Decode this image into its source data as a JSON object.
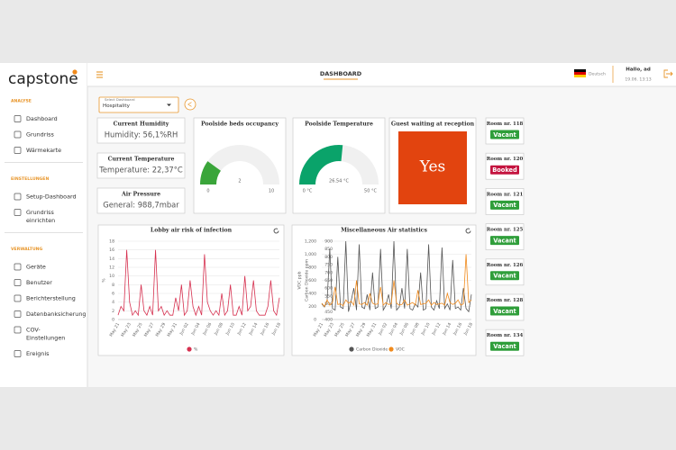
{
  "brand": "capstone",
  "sidebar": [
    {
      "heading": "ANALYSE",
      "items": [
        "Dashboard",
        "Grundriss",
        "Wärmekarte"
      ]
    },
    {
      "heading": "EINSTELLUNGEN",
      "items": [
        "Setup-Dashboard",
        "Grundriss einrichten"
      ]
    },
    {
      "heading": "VERWALTUNG",
      "items": [
        "Geräte",
        "Benutzer",
        "Berichterstellung",
        "Datenbanksicherung",
        "COV-Einstellungen",
        "Ereignis"
      ]
    }
  ],
  "header": {
    "title": "DASHBOARD",
    "language": "Deutsch",
    "greeting": "Hallo, ad",
    "datetime": "19.06. 13:13"
  },
  "selector": {
    "label": "Select Dashboard",
    "value": "Hospitality"
  },
  "info_cards": [
    {
      "title": "Current Humidity",
      "text": "Humidity: 56,1%RH"
    },
    {
      "title": "Current Temperature",
      "text": "Temperature: 22,37°C"
    },
    {
      "title": "Air Pressure",
      "text": "General: 988,7mbar"
    }
  ],
  "gauges": [
    {
      "type": "gauge",
      "title": "Poolside beds occupancy",
      "value": 2,
      "range": [
        0,
        10
      ],
      "color": "#3aa53a"
    },
    {
      "type": "gauge",
      "title": "Poolside Temperature",
      "value": 26.54,
      "value_label": "26.54 °C",
      "range": [
        0,
        50
      ],
      "range_labels": [
        "0 °C",
        "50 °C"
      ],
      "color": "#0aa36a"
    }
  ],
  "guest": {
    "title": "Guest waiting at reception",
    "status": "Yes",
    "color": "#e2440f"
  },
  "rooms": [
    {
      "name": "Room nr. 118",
      "status": "Vacant",
      "color": "#2f9e3a"
    },
    {
      "name": "Room nr. 120",
      "status": "Booked",
      "color": "#c4133f"
    },
    {
      "name": "Room nr. 121",
      "status": "Vacant",
      "color": "#2f9e3a"
    },
    {
      "name": "Room nr. 125",
      "status": "Vacant",
      "color": "#2f9e3a"
    },
    {
      "name": "Room nr. 126",
      "status": "Vacant",
      "color": "#2f9e3a"
    },
    {
      "name": "Room nr. 128",
      "status": "Vacant",
      "color": "#2f9e3a"
    },
    {
      "name": "Room nr. 134",
      "status": "Vacant",
      "color": "#2f9e3a"
    }
  ],
  "chart_data": [
    {
      "type": "line",
      "title": "Lobby air risk of infection",
      "y_label": "%",
      "ylim": [
        0,
        18
      ],
      "yticks": [
        0,
        2,
        4,
        6,
        8,
        10,
        12,
        14,
        16,
        18
      ],
      "grid": true,
      "categories": [
        "May 21",
        null,
        null,
        null,
        "May 23",
        null,
        null,
        null,
        "May 25",
        null,
        null,
        null,
        "May 27",
        null,
        null,
        null,
        "May 29",
        null,
        null,
        null,
        "May 31",
        null,
        null,
        null,
        "Jun 02",
        null,
        null,
        null,
        "Jun 04",
        null,
        null,
        null,
        "Jun 06",
        null,
        null,
        null,
        "Jun 08",
        null,
        null,
        null,
        "Jun 10",
        null,
        null,
        null,
        "Jun 12",
        null,
        null,
        null,
        "Jun 14",
        null,
        null,
        null,
        "Jun 16",
        null,
        null,
        null,
        "Jun 18"
      ],
      "series": [
        {
          "name": "%",
          "color": "#d6304f",
          "values": [
            1,
            3,
            2,
            16,
            4,
            1,
            2,
            1,
            8,
            2,
            1,
            3,
            1,
            16,
            2,
            3,
            1,
            2,
            1,
            1,
            5,
            2,
            8,
            1,
            2,
            9,
            3,
            1,
            3,
            1,
            15,
            4,
            2,
            1,
            2,
            1,
            6,
            1,
            2,
            8,
            1,
            1,
            3,
            1,
            10,
            2,
            3,
            9,
            2,
            1,
            1,
            1,
            3,
            9,
            2,
            1,
            5
          ]
        }
      ]
    },
    {
      "type": "line",
      "title": "Miscellaneous Air statistics",
      "y_label": "VOC ppb",
      "y2_label": "Carbon Dioxide ppm",
      "ylim": [
        0,
        1200
      ],
      "yticks": [
        0,
        200,
        400,
        600,
        800,
        {
          "value": 1000,
          "label": "1,000"
        },
        {
          "value": 1200,
          "label": "1,200"
        }
      ],
      "y2lim": [
        400,
        900
      ],
      "y2ticks": [
        400,
        450,
        500,
        550,
        600,
        650,
        700,
        750,
        800,
        850,
        900
      ],
      "grid": true,
      "categories": [
        "May 21",
        null,
        null,
        null,
        "May 23",
        null,
        null,
        null,
        "May 25",
        null,
        null,
        null,
        "May 27",
        null,
        null,
        null,
        "May 29",
        null,
        null,
        null,
        "May 31",
        null,
        null,
        null,
        "Jun 02",
        null,
        null,
        null,
        "Jun 04",
        null,
        null,
        null,
        "Jun 06",
        null,
        null,
        null,
        "Jun 08",
        null,
        null,
        null,
        "Jun 10",
        null,
        null,
        null,
        "Jun 12",
        null,
        null,
        null,
        "Jun 14",
        null,
        null,
        null,
        "Jun 16",
        null,
        null,
        null,
        "Jun 18"
      ],
      "series": [
        {
          "name": "Carbon Dioxide",
          "color": "#555555",
          "axis": "y2",
          "values": [
            500,
            480,
            520,
            850,
            470,
            460,
            800,
            480,
            470,
            900,
            450,
            520,
            600,
            460,
            880,
            480,
            470,
            560,
            460,
            700,
            470,
            480,
            850,
            460,
            490,
            560,
            470,
            900,
            460,
            480,
            600,
            470,
            850,
            470,
            460,
            500,
            480,
            700,
            460,
            470,
            880,
            480,
            460,
            520,
            470,
            860,
            470,
            500,
            460,
            780,
            470,
            480,
            460,
            600,
            470,
            450,
            560
          ]
        },
        {
          "name": "VOC",
          "color": "#f08a1c",
          "values": [
            250,
            200,
            300,
            220,
            260,
            500,
            230,
            240,
            210,
            300,
            250,
            280,
            220,
            600,
            240,
            230,
            260,
            220,
            400,
            250,
            230,
            240,
            500,
            220,
            260,
            230,
            240,
            600,
            250,
            220,
            230,
            300,
            220,
            240,
            260,
            220,
            450,
            230,
            240,
            250,
            300,
            220,
            260,
            230,
            240,
            250,
            220,
            400,
            260,
            230,
            250,
            300,
            220,
            240,
            1000,
            260,
            300
          ]
        }
      ]
    }
  ]
}
